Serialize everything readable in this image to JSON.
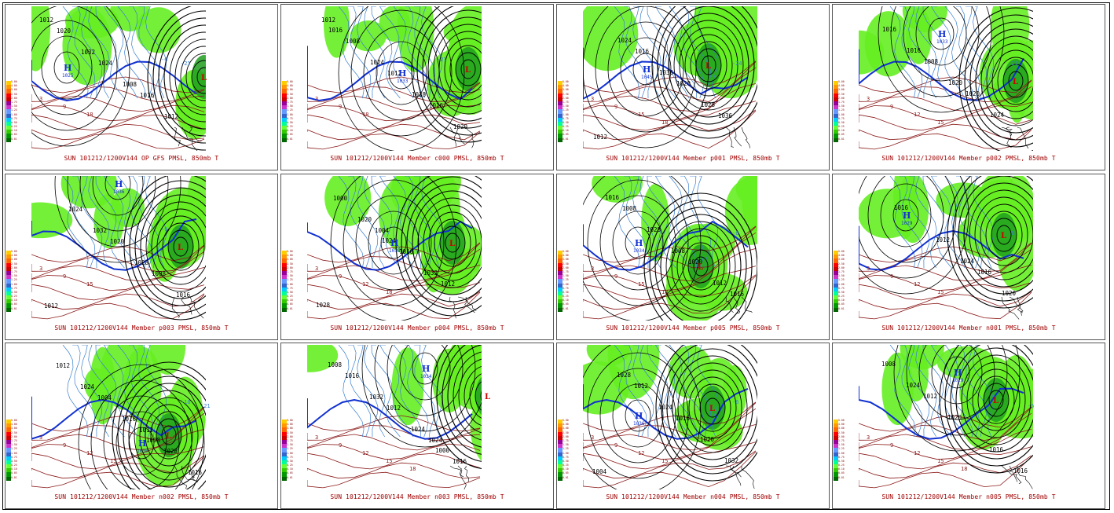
{
  "figure_title": "",
  "panels": [
    {
      "caption": "SUN 101212/1200V144  OP GFS PMSL, 850mb T",
      "high": "H",
      "high_value": "1025",
      "low": "L",
      "isobars": [
        "1012",
        "1032",
        "1008",
        "1012",
        "1020",
        "1024",
        "1016"
      ],
      "isotherms": [
        "3",
        "9",
        "18",
        "-6",
        "-21"
      ]
    },
    {
      "caption": "SUN 101212/1200V144  Member c000 PMSL, 850mb T",
      "high": "H",
      "high_value": "1033",
      "low": "L",
      "isobars": [
        "1016",
        "1024",
        "1028",
        "1020",
        "1008",
        "1012",
        "1016",
        "1012"
      ],
      "isotherms": [
        "3",
        "9",
        "18",
        "-21"
      ]
    },
    {
      "caption": "SUN 101212/1200V144  Member p001 PMSL, 850mb T",
      "high": "H",
      "high_value": "1045",
      "low": "L",
      "isobars": [
        "1024",
        "1036",
        "1028",
        "1012",
        "1016",
        "1020",
        "1036"
      ],
      "isotherms": [
        "3",
        "9",
        "15",
        "18",
        "-24"
      ]
    },
    {
      "caption": "SUN 101212/1200V144  Member p002 PMSL, 850mb T",
      "high": "H",
      "high_value": "1033",
      "low": "L",
      "isobars": [
        "1016",
        "1020",
        "1024",
        "1016",
        "1008",
        "1020"
      ],
      "isotherms": [
        "3",
        "9",
        "12",
        "15",
        "-21"
      ]
    },
    {
      "caption": "SUN 101212/1200V144  Member p003 PMSL, 850mb T",
      "high": "H",
      "high_value": "1036",
      "low": "L",
      "isobars": [
        "1032",
        "1028",
        "1016",
        "1024",
        "1020",
        "1008",
        "1012"
      ],
      "isotherms": [
        "3",
        "9",
        "15",
        "-6"
      ]
    },
    {
      "caption": "SUN 101212/1200V144  Member p004 PMSL, 850mb T",
      "high": "H",
      "high_value": "1038",
      "low": "L",
      "isobars": [
        "1024",
        "1032",
        "1028",
        "1020",
        "1016",
        "1012",
        "1000",
        "1004"
      ],
      "isotherms": [
        "3",
        "9",
        "12",
        "18"
      ]
    },
    {
      "caption": "SUN 101212/1200V144  Member p005 PMSL, 850mb T",
      "high": "H",
      "high_value": "1034",
      "low": "L",
      "isobars": [
        "1008",
        "1012",
        "1016",
        "1028",
        "1020",
        "1016",
        "1008"
      ],
      "isotherms": [
        "3",
        "9",
        "15",
        "18",
        "-6"
      ]
    },
    {
      "caption": "SUN 101212/1200V144  Member n001 PMSL, 850mb T",
      "high": "H",
      "high_value": "1029",
      "low": "L",
      "isobars": [
        "1024",
        "1020",
        "1016",
        "1012",
        "1016"
      ],
      "isotherms": [
        "3",
        "9",
        "12",
        "15",
        "-6"
      ]
    },
    {
      "caption": "SUN 101212/1200V144  Member n002 PMSL, 850mb T",
      "high": "H",
      "high_value": "1030",
      "low": "L",
      "isobars": [
        "1008",
        "1016",
        "1024",
        "1016",
        "1028",
        "1012",
        "1004",
        "1012"
      ],
      "isotherms": [
        "3",
        "9",
        "12",
        "15",
        "-18",
        "-21"
      ]
    },
    {
      "caption": "SUN 101212/1200V144  Member n003 PMSL, 850mb T",
      "high": "H",
      "high_value": "1034",
      "low": "L",
      "isobars": [
        "1000",
        "1008",
        "1032",
        "1024",
        "1016",
        "1016",
        "1012",
        "1024"
      ],
      "isotherms": [
        "3",
        "9",
        "12",
        "15",
        "18"
      ]
    },
    {
      "caption": "SUN 101212/1200V144  Member n004 PMSL, 850mb T",
      "high": "H",
      "high_value": "1036",
      "low": "L",
      "isobars": [
        "1032",
        "1028",
        "1024",
        "1020",
        "1004",
        "1012",
        "1016"
      ],
      "isotherms": [
        "3",
        "9",
        "12",
        "15",
        "-6"
      ]
    },
    {
      "caption": "SUN 101212/1200V144  Member n005 PMSL, 850mb T",
      "high": "H",
      "high_value": "1029",
      "low": "L",
      "isobars": [
        "1016",
        "1024",
        "1020",
        "1016",
        "1008",
        "1012"
      ],
      "isotherms": [
        "3",
        "9",
        "12",
        "15",
        "18",
        "-6"
      ]
    }
  ],
  "precip_scale": [
    "5.00",
    "4.00",
    "3.00",
    "2.50",
    "2.00",
    "1.75",
    "1.50",
    "1.25",
    "1.00",
    "0.75",
    "0.50",
    "0.25",
    "0.10",
    "0.05",
    "0.01"
  ],
  "precip_colors": [
    "#ffcc00",
    "#ff9900",
    "#ff6600",
    "#ff0000",
    "#cc0000",
    "#990099",
    "#cc33cc",
    "#6699ff",
    "#3366cc",
    "#00ccff",
    "#00ff99",
    "#66ff33",
    "#33cc00",
    "#009900",
    "#006600"
  ],
  "colors": {
    "isobar": "#000000",
    "isotherm_warm": "#8b1a1a",
    "isotherm_cold": "#3a7fd0",
    "freezing_line": "#1030d0",
    "high": "#1030d0",
    "low": "#cc0000",
    "precip": "#66ee22",
    "precip_dark": "#1e9e1e",
    "caption": "#a00000"
  },
  "chart_data": {
    "type": "heatmap",
    "title": "",
    "xlabel": "",
    "ylabel": "",
    "grid": "4 columns x 3 rows of map panels",
    "series": [
      {
        "name": "OP GFS",
        "high_center_hPa": 1025
      },
      {
        "name": "c000",
        "high_center_hPa": 1033
      },
      {
        "name": "p001",
        "high_center_hPa": 1045
      },
      {
        "name": "p002",
        "high_center_hPa": 1033
      },
      {
        "name": "p003",
        "high_center_hPa": 1036
      },
      {
        "name": "p004",
        "high_center_hPa": 1038
      },
      {
        "name": "p005",
        "high_center_hPa": 1034
      },
      {
        "name": "n001",
        "high_center_hPa": 1029
      },
      {
        "name": "n002",
        "high_center_hPa": 1030
      },
      {
        "name": "n003",
        "high_center_hPa": 1034
      },
      {
        "name": "n004",
        "high_center_hPa": 1036
      },
      {
        "name": "n005",
        "high_center_hPa": 1029
      }
    ]
  }
}
